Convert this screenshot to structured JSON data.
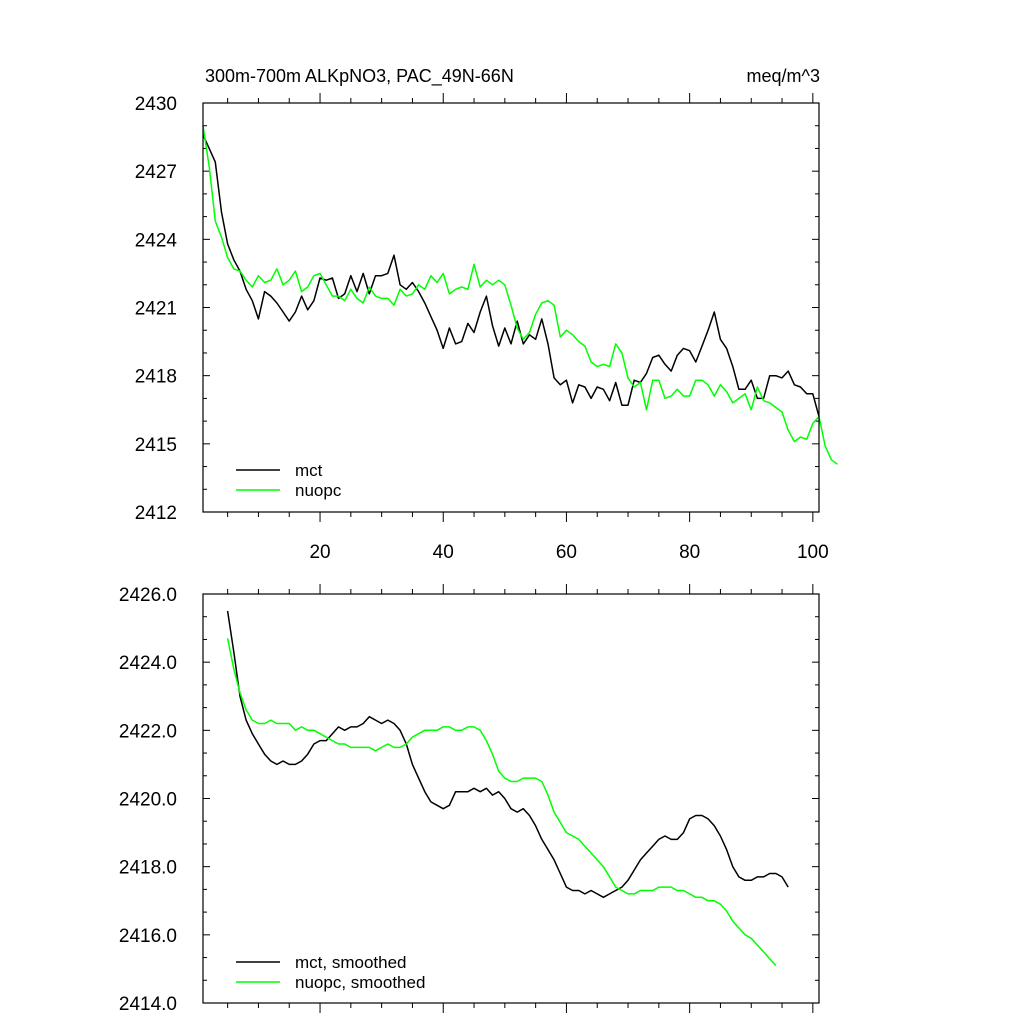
{
  "chart_data": [
    {
      "type": "line",
      "title": "300m-700m ALKpNO3, PAC_49N-66N",
      "units": "meq/m^3",
      "xlabel": "",
      "ylabel": "",
      "xlim": [
        1,
        101
      ],
      "ylim": [
        2412,
        2430
      ],
      "x_ticks": [
        20,
        40,
        60,
        80,
        100
      ],
      "y_ticks": [
        2412,
        2415,
        2418,
        2421,
        2424,
        2427,
        2430
      ],
      "y_tick_labels": [
        "2412",
        "2415",
        "2418",
        "2421",
        "2424",
        "2427",
        "2430"
      ],
      "legend_position": "bottom-left",
      "series": [
        {
          "name": "mct",
          "color": "#000000",
          "values": [
            2428.6,
            2428.0,
            2427.4,
            2425.2,
            2423.8,
            2423.1,
            2422.6,
            2421.8,
            2421.3,
            2420.5,
            2421.7,
            2421.5,
            2421.2,
            2420.8,
            2420.4,
            2420.8,
            2421.5,
            2420.9,
            2421.3,
            2422.3,
            2422.2,
            2422.3,
            2421.4,
            2421.6,
            2422.4,
            2421.7,
            2422.5,
            2421.6,
            2422.4,
            2422.4,
            2422.5,
            2423.3,
            2422.0,
            2421.8,
            2422.1,
            2421.7,
            2421.2,
            2420.6,
            2420.0,
            2419.2,
            2420.1,
            2419.4,
            2419.5,
            2420.3,
            2419.9,
            2420.8,
            2421.5,
            2420.2,
            2419.3,
            2420.1,
            2419.4,
            2420.4,
            2419.4,
            2419.8,
            2419.6,
            2420.5,
            2419.4,
            2417.9,
            2417.6,
            2417.8,
            2416.8,
            2417.6,
            2417.5,
            2417.0,
            2417.5,
            2417.4,
            2416.9,
            2417.7,
            2416.7,
            2416.7,
            2417.8,
            2417.7,
            2418.1,
            2418.8,
            2418.9,
            2418.5,
            2418.2,
            2418.9,
            2419.2,
            2419.1,
            2418.6,
            2419.3,
            2420.0,
            2420.8,
            2419.6,
            2419.2,
            2418.4,
            2417.4,
            2417.4,
            2417.8,
            2417.0,
            2417.0,
            2418.0,
            2418.0,
            2417.9,
            2418.2,
            2417.6,
            2417.5,
            2417.2,
            2417.2,
            2416.2
          ]
        },
        {
          "name": "nuopc",
          "color": "#00ff00",
          "values": [
            2429.0,
            2427.2,
            2424.8,
            2424.1,
            2423.2,
            2422.7,
            2422.6,
            2422.2,
            2421.9,
            2422.4,
            2422.1,
            2422.2,
            2422.7,
            2422.0,
            2422.2,
            2422.6,
            2421.7,
            2421.9,
            2422.4,
            2422.5,
            2422.0,
            2421.5,
            2421.5,
            2421.3,
            2421.8,
            2421.4,
            2421.2,
            2421.9,
            2421.5,
            2421.4,
            2421.4,
            2421.1,
            2421.8,
            2421.5,
            2421.6,
            2422.0,
            2421.8,
            2422.4,
            2422.1,
            2422.5,
            2421.6,
            2421.8,
            2421.9,
            2421.8,
            2422.9,
            2421.9,
            2422.2,
            2422.0,
            2422.2,
            2422.0,
            2421.1,
            2420.1,
            2419.6,
            2419.9,
            2420.7,
            2421.2,
            2421.3,
            2421.1,
            2419.7,
            2420.0,
            2419.8,
            2419.5,
            2419.3,
            2418.6,
            2418.4,
            2418.5,
            2418.4,
            2419.4,
            2419.0,
            2417.9,
            2417.5,
            2417.7,
            2416.5,
            2417.8,
            2417.8,
            2417.0,
            2417.1,
            2417.4,
            2417.1,
            2417.1,
            2417.8,
            2417.8,
            2417.6,
            2417.1,
            2417.6,
            2417.3,
            2416.8,
            2417.0,
            2417.2,
            2416.5,
            2417.5,
            2416.9,
            2416.8,
            2416.6,
            2416.4,
            2415.6,
            2415.1,
            2415.3,
            2415.2,
            2415.9,
            2416.2,
            2414.9,
            2414.3,
            2414.1
          ]
        }
      ]
    },
    {
      "type": "line",
      "title": "",
      "xlabel": "",
      "ylabel": "",
      "xlim": [
        1,
        101
      ],
      "ylim": [
        2414,
        2426
      ],
      "x_ticks": [
        20,
        40,
        60,
        80,
        100
      ],
      "y_ticks": [
        2414,
        2416,
        2418,
        2420,
        2422,
        2424,
        2426
      ],
      "y_tick_labels": [
        "2414.0",
        "2416.0",
        "2418.0",
        "2420.0",
        "2422.0",
        "2424.0",
        "2426.0"
      ],
      "legend_position": "bottom-left",
      "series": [
        {
          "name": "mct, smoothed",
          "color": "#000000",
          "x_start": 5,
          "values": [
            2425.5,
            2424.3,
            2423.0,
            2422.3,
            2421.9,
            2421.6,
            2421.3,
            2421.1,
            2421.0,
            2421.1,
            2421.0,
            2421.0,
            2421.1,
            2421.3,
            2421.6,
            2421.7,
            2421.7,
            2421.9,
            2422.1,
            2422.0,
            2422.1,
            2422.1,
            2422.2,
            2422.4,
            2422.3,
            2422.2,
            2422.3,
            2422.2,
            2422.0,
            2421.6,
            2421.0,
            2420.6,
            2420.2,
            2419.9,
            2419.8,
            2419.7,
            2419.8,
            2420.2,
            2420.2,
            2420.2,
            2420.3,
            2420.2,
            2420.3,
            2420.1,
            2420.2,
            2420.0,
            2419.7,
            2419.6,
            2419.7,
            2419.5,
            2419.2,
            2418.8,
            2418.5,
            2418.2,
            2417.8,
            2417.4,
            2417.3,
            2417.3,
            2417.2,
            2417.3,
            2417.2,
            2417.1,
            2417.2,
            2417.3,
            2417.4,
            2417.6,
            2417.9,
            2418.2,
            2418.4,
            2418.6,
            2418.8,
            2418.9,
            2418.8,
            2418.8,
            2419.0,
            2419.4,
            2419.5,
            2419.5,
            2419.4,
            2419.2,
            2418.9,
            2418.5,
            2418.0,
            2417.7,
            2417.6,
            2417.6,
            2417.7,
            2417.7,
            2417.8,
            2417.8,
            2417.7,
            2417.4
          ]
        },
        {
          "name": "nuopc, smoothed",
          "color": "#00ff00",
          "x_start": 5,
          "values": [
            2424.7,
            2423.8,
            2423.1,
            2422.6,
            2422.3,
            2422.2,
            2422.2,
            2422.3,
            2422.2,
            2422.2,
            2422.2,
            2422.0,
            2422.1,
            2422.0,
            2422.0,
            2421.9,
            2421.8,
            2421.7,
            2421.6,
            2421.6,
            2421.5,
            2421.5,
            2421.5,
            2421.5,
            2421.4,
            2421.5,
            2421.6,
            2421.5,
            2421.5,
            2421.6,
            2421.8,
            2421.9,
            2422.0,
            2422.0,
            2422.0,
            2422.1,
            2422.1,
            2422.0,
            2422.0,
            2422.1,
            2422.1,
            2422.0,
            2421.7,
            2421.3,
            2420.8,
            2420.6,
            2420.5,
            2420.5,
            2420.6,
            2420.6,
            2420.6,
            2420.5,
            2420.1,
            2419.6,
            2419.3,
            2419.0,
            2418.9,
            2418.8,
            2418.6,
            2418.4,
            2418.2,
            2418.0,
            2417.7,
            2417.4,
            2417.3,
            2417.2,
            2417.2,
            2417.3,
            2417.3,
            2417.3,
            2417.4,
            2417.4,
            2417.4,
            2417.3,
            2417.3,
            2417.2,
            2417.1,
            2417.1,
            2417.0,
            2417.0,
            2416.9,
            2416.7,
            2416.4,
            2416.2,
            2416.0,
            2415.9,
            2415.7,
            2415.5,
            2415.3,
            2415.1
          ]
        }
      ]
    }
  ]
}
